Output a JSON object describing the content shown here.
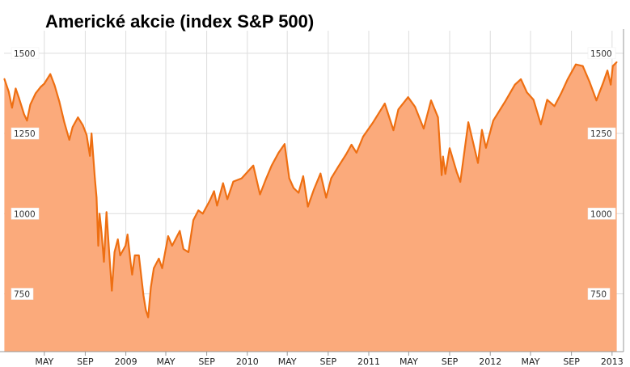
{
  "chart_data": {
    "type": "area",
    "title": "Americké akcie (index S&P 500)",
    "ylim": [
      570,
      1560
    ],
    "y_ticks": [
      750,
      1000,
      1250,
      1500
    ],
    "y_tick_labels": [
      "750",
      "1000",
      "1250",
      "1500"
    ],
    "x_ticks": [
      {
        "label": "MAY",
        "date": "2008-05-01"
      },
      {
        "label": "SEP",
        "date": "2008-09-01"
      },
      {
        "label": "2009",
        "date": "2009-01-01"
      },
      {
        "label": "MAY",
        "date": "2009-05-01"
      },
      {
        "label": "SEP",
        "date": "2009-09-01"
      },
      {
        "label": "2010",
        "date": "2010-01-01"
      },
      {
        "label": "MAY",
        "date": "2010-05-01"
      },
      {
        "label": "SEP",
        "date": "2010-09-01"
      },
      {
        "label": "2011",
        "date": "2011-01-01"
      },
      {
        "label": "MAY",
        "date": "2011-05-01"
      },
      {
        "label": "SEP",
        "date": "2011-09-01"
      },
      {
        "label": "2012",
        "date": "2012-01-01"
      },
      {
        "label": "MAY",
        "date": "2012-05-01"
      },
      {
        "label": "SEP",
        "date": "2012-09-01"
      },
      {
        "label": "2013",
        "date": "2013-01-01"
      }
    ],
    "grid": true,
    "legend": "none",
    "colors": {
      "line": "#ee6f12",
      "fill": "#fbaa7b",
      "grid": "#dddddd",
      "axis": "#999999"
    },
    "series": [
      {
        "points": [
          [
            "2008-01-02",
            1420
          ],
          [
            "2008-01-15",
            1380
          ],
          [
            "2008-01-25",
            1330
          ],
          [
            "2008-02-05",
            1390
          ],
          [
            "2008-02-15",
            1360
          ],
          [
            "2008-03-01",
            1310
          ],
          [
            "2008-03-10",
            1290
          ],
          [
            "2008-03-20",
            1340
          ],
          [
            "2008-04-05",
            1375
          ],
          [
            "2008-04-20",
            1395
          ],
          [
            "2008-05-01",
            1405
          ],
          [
            "2008-05-19",
            1435
          ],
          [
            "2008-06-01",
            1400
          ],
          [
            "2008-06-15",
            1350
          ],
          [
            "2008-06-30",
            1285
          ],
          [
            "2008-07-15",
            1230
          ],
          [
            "2008-07-25",
            1270
          ],
          [
            "2008-08-10",
            1300
          ],
          [
            "2008-08-25",
            1275
          ],
          [
            "2008-09-05",
            1245
          ],
          [
            "2008-09-15",
            1180
          ],
          [
            "2008-09-20",
            1250
          ],
          [
            "2008-09-30",
            1110
          ],
          [
            "2008-10-05",
            1050
          ],
          [
            "2008-10-10",
            900
          ],
          [
            "2008-10-14",
            1000
          ],
          [
            "2008-10-20",
            940
          ],
          [
            "2008-10-27",
            850
          ],
          [
            "2008-11-04",
            1005
          ],
          [
            "2008-11-12",
            880
          ],
          [
            "2008-11-20",
            760
          ],
          [
            "2008-11-28",
            880
          ],
          [
            "2008-12-08",
            920
          ],
          [
            "2008-12-15",
            870
          ],
          [
            "2008-12-31",
            900
          ],
          [
            "2009-01-06",
            935
          ],
          [
            "2009-01-15",
            850
          ],
          [
            "2009-01-20",
            810
          ],
          [
            "2009-01-28",
            870
          ],
          [
            "2009-02-09",
            870
          ],
          [
            "2009-02-23",
            745
          ],
          [
            "2009-03-02",
            700
          ],
          [
            "2009-03-09",
            677
          ],
          [
            "2009-03-17",
            770
          ],
          [
            "2009-03-26",
            830
          ],
          [
            "2009-04-10",
            860
          ],
          [
            "2009-04-20",
            830
          ],
          [
            "2009-05-08",
            930
          ],
          [
            "2009-05-20",
            900
          ],
          [
            "2009-06-12",
            946
          ],
          [
            "2009-06-23",
            890
          ],
          [
            "2009-07-08",
            880
          ],
          [
            "2009-07-23",
            980
          ],
          [
            "2009-08-07",
            1010
          ],
          [
            "2009-08-20",
            1000
          ],
          [
            "2009-09-10",
            1040
          ],
          [
            "2009-09-23",
            1070
          ],
          [
            "2009-10-02",
            1025
          ],
          [
            "2009-10-20",
            1095
          ],
          [
            "2009-11-02",
            1045
          ],
          [
            "2009-11-20",
            1100
          ],
          [
            "2009-12-15",
            1110
          ],
          [
            "2010-01-19",
            1150
          ],
          [
            "2010-02-08",
            1060
          ],
          [
            "2010-02-25",
            1105
          ],
          [
            "2010-03-15",
            1150
          ],
          [
            "2010-04-05",
            1190
          ],
          [
            "2010-04-23",
            1217
          ],
          [
            "2010-05-07",
            1110
          ],
          [
            "2010-05-20",
            1080
          ],
          [
            "2010-06-04",
            1065
          ],
          [
            "2010-06-18",
            1117
          ],
          [
            "2010-07-02",
            1022
          ],
          [
            "2010-07-20",
            1075
          ],
          [
            "2010-08-09",
            1125
          ],
          [
            "2010-08-26",
            1050
          ],
          [
            "2010-09-10",
            1110
          ],
          [
            "2010-10-01",
            1146
          ],
          [
            "2010-10-25",
            1185
          ],
          [
            "2010-11-10",
            1215
          ],
          [
            "2010-11-25",
            1190
          ],
          [
            "2010-12-15",
            1240
          ],
          [
            "2011-01-14",
            1285
          ],
          [
            "2011-02-18",
            1343
          ],
          [
            "2011-03-16",
            1260
          ],
          [
            "2011-03-31",
            1325
          ],
          [
            "2011-04-29",
            1363
          ],
          [
            "2011-05-20",
            1333
          ],
          [
            "2011-06-15",
            1265
          ],
          [
            "2011-07-07",
            1353
          ],
          [
            "2011-07-28",
            1300
          ],
          [
            "2011-08-08",
            1120
          ],
          [
            "2011-08-12",
            1178
          ],
          [
            "2011-08-19",
            1124
          ],
          [
            "2011-09-01",
            1204
          ],
          [
            "2011-09-22",
            1130
          ],
          [
            "2011-10-03",
            1099
          ],
          [
            "2011-10-27",
            1285
          ],
          [
            "2011-11-25",
            1158
          ],
          [
            "2011-12-07",
            1261
          ],
          [
            "2011-12-19",
            1205
          ],
          [
            "2012-01-10",
            1290
          ],
          [
            "2012-02-15",
            1350
          ],
          [
            "2012-03-15",
            1402
          ],
          [
            "2012-04-02",
            1419
          ],
          [
            "2012-04-20",
            1378
          ],
          [
            "2012-05-10",
            1355
          ],
          [
            "2012-06-01",
            1278
          ],
          [
            "2012-06-20",
            1355
          ],
          [
            "2012-07-12",
            1335
          ],
          [
            "2012-08-01",
            1375
          ],
          [
            "2012-08-20",
            1418
          ],
          [
            "2012-09-14",
            1465
          ],
          [
            "2012-10-05",
            1460
          ],
          [
            "2012-10-25",
            1412
          ],
          [
            "2012-11-15",
            1353
          ],
          [
            "2012-12-05",
            1407
          ],
          [
            "2012-12-18",
            1446
          ],
          [
            "2012-12-28",
            1402
          ],
          [
            "2013-01-03",
            1460
          ],
          [
            "2013-01-15",
            1472
          ]
        ]
      }
    ]
  }
}
